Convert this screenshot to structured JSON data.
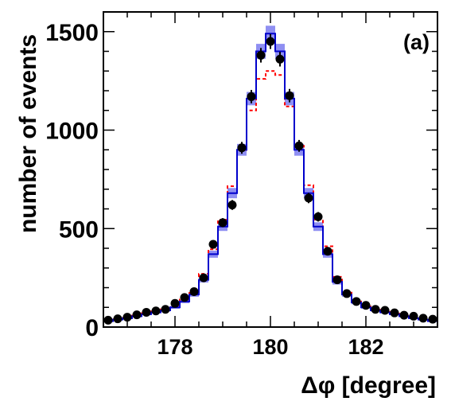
{
  "chart_data": {
    "type": "bar",
    "panel_label": "(a)",
    "xlabel": "Δφ [degree]",
    "ylabel": "number of events",
    "xlim": [
      176.5,
      183.5
    ],
    "ylim": [
      0,
      1600
    ],
    "x_ticks": [
      178,
      180,
      182
    ],
    "x_tick_labels": [
      "178",
      "180",
      "182"
    ],
    "y_ticks": [
      0,
      500,
      1000,
      1500
    ],
    "y_tick_labels": [
      "0",
      "500",
      "1000",
      "1500"
    ],
    "bin_width": 0.2,
    "bin_centers": [
      176.6,
      176.8,
      177.0,
      177.2,
      177.4,
      177.6,
      177.8,
      178.0,
      178.2,
      178.4,
      178.6,
      178.8,
      179.0,
      179.2,
      179.4,
      179.6,
      179.8,
      180.0,
      180.2,
      180.4,
      180.6,
      180.8,
      181.0,
      181.2,
      181.4,
      181.6,
      181.8,
      182.0,
      182.2,
      182.4,
      182.6,
      182.8,
      183.0,
      183.2,
      183.4
    ],
    "series": [
      {
        "kind": "data points",
        "values": [
          35,
          42,
          50,
          62,
          75,
          82,
          90,
          120,
          150,
          180,
          250,
          420,
          530,
          620,
          910,
          1170,
          1380,
          1450,
          1360,
          1175,
          920,
          655,
          560,
          385,
          240,
          170,
          130,
          110,
          90,
          85,
          72,
          60,
          55,
          45,
          40
        ],
        "errors": [
          6,
          7,
          7,
          8,
          9,
          9,
          10,
          11,
          12,
          14,
          16,
          20,
          23,
          25,
          30,
          34,
          37,
          38,
          37,
          34,
          30,
          26,
          24,
          20,
          16,
          13,
          11,
          10,
          10,
          9,
          8,
          8,
          7,
          7,
          6
        ]
      },
      {
        "kind": "simulation (solid blue histogram with uncertainty band)",
        "values": [
          30,
          38,
          45,
          55,
          65,
          75,
          85,
          100,
          130,
          165,
          240,
          370,
          510,
          680,
          900,
          1160,
          1400,
          1490,
          1400,
          1160,
          900,
          680,
          510,
          370,
          230,
          165,
          125,
          100,
          85,
          75,
          65,
          55,
          45,
          38,
          30
        ],
        "band": [
          3,
          3,
          4,
          5,
          5,
          6,
          6,
          7,
          9,
          11,
          14,
          18,
          22,
          26,
          30,
          34,
          38,
          40,
          38,
          34,
          30,
          26,
          22,
          18,
          14,
          11,
          9,
          7,
          6,
          6,
          5,
          5,
          4,
          3,
          3
        ],
        "color": "#0000cc",
        "band_color": "#7b7bf0"
      },
      {
        "kind": "alternative simulation (red dashed histogram)",
        "values": [
          32,
          40,
          48,
          58,
          70,
          80,
          90,
          110,
          140,
          185,
          270,
          395,
          545,
          715,
          900,
          1100,
          1260,
          1300,
          1280,
          1120,
          920,
          720,
          545,
          410,
          255,
          175,
          130,
          105,
          88,
          78,
          68,
          58,
          48,
          40,
          32
        ],
        "color": "#ff0000"
      }
    ]
  }
}
